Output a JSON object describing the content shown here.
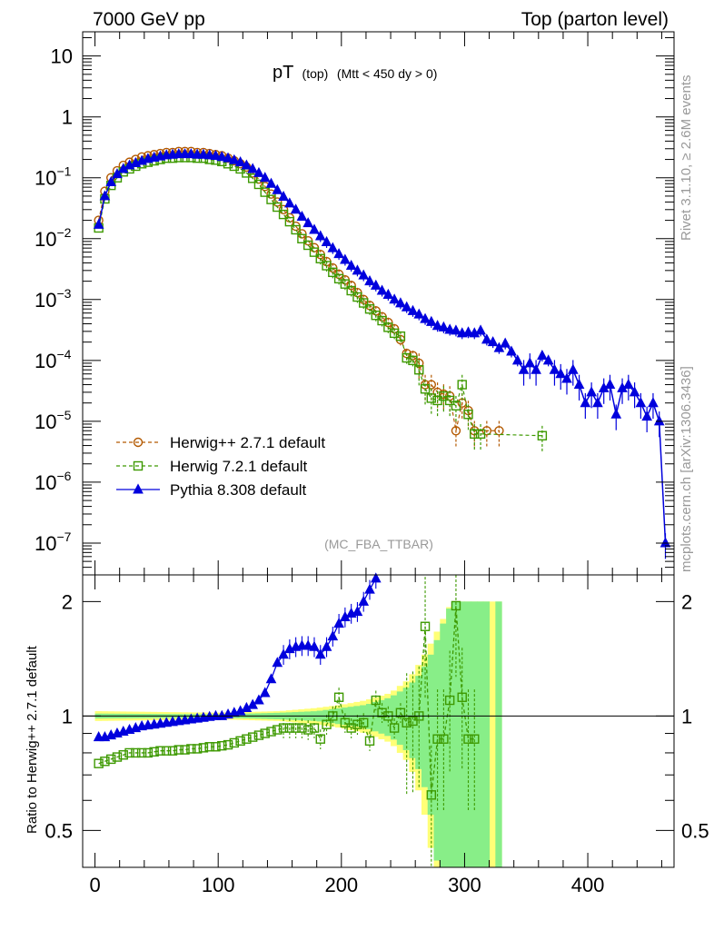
{
  "header": {
    "left": "7000 GeV pp",
    "right": "Top (parton level)"
  },
  "side_labels": {
    "rivet": "Rivet 3.1.10, ≥ 2.6M events",
    "mcplots": "mcplots.cern.ch [arXiv:1306.3436]"
  },
  "chart_data": [
    {
      "type": "line",
      "title_main": "pT",
      "title_sub1": "(top)",
      "title_sub2": "(Mtt < 450 dy > 0)",
      "analysis": "(MC_FBA_TTBAR)",
      "xlabel": "",
      "ylabel": "",
      "xlim": [
        -10,
        470
      ],
      "ylim_log": [
        3e-08,
        25
      ],
      "yscale": "log",
      "yticks": [
        {
          "v": 10,
          "label": "10"
        },
        {
          "v": 1,
          "label": "1"
        },
        {
          "v": 0.1,
          "label": "10",
          "exp": "−1"
        },
        {
          "v": 0.01,
          "label": "10",
          "exp": "−2"
        },
        {
          "v": 0.001,
          "label": "10",
          "exp": "−3"
        },
        {
          "v": 0.0001,
          "label": "10",
          "exp": "−4"
        },
        {
          "v": 1e-05,
          "label": "10",
          "exp": "−5"
        },
        {
          "v": 1e-06,
          "label": "10",
          "exp": "−6"
        },
        {
          "v": 1e-07,
          "label": "10",
          "exp": "−7"
        }
      ],
      "legend": [
        {
          "name": "Herwig++ 2.7.1 default",
          "color": "#b35900",
          "marker": "circle",
          "dash": true
        },
        {
          "name": "Herwig 7.2.1 default",
          "color": "#3d9900",
          "marker": "square",
          "dash": true
        },
        {
          "name": "Pythia 8.308 default",
          "color": "#0000dd",
          "marker": "triangle",
          "dash": false
        }
      ],
      "series": [
        {
          "name": "Herwig++ 2.7.1 default",
          "x": [
            3,
            8,
            13,
            18,
            23,
            28,
            33,
            38,
            43,
            48,
            53,
            58,
            63,
            68,
            73,
            78,
            83,
            88,
            93,
            98,
            103,
            108,
            113,
            118,
            123,
            128,
            133,
            138,
            143,
            148,
            153,
            158,
            163,
            168,
            173,
            178,
            183,
            188,
            193,
            198,
            203,
            208,
            213,
            218,
            223,
            228,
            233,
            238,
            243,
            248,
            253,
            258,
            263,
            268,
            273,
            278,
            283,
            288,
            293,
            298,
            303,
            308,
            318,
            328
          ],
          "y": [
            0.02,
            0.06,
            0.1,
            0.13,
            0.16,
            0.18,
            0.2,
            0.22,
            0.23,
            0.24,
            0.25,
            0.26,
            0.26,
            0.27,
            0.27,
            0.27,
            0.26,
            0.26,
            0.25,
            0.24,
            0.23,
            0.21,
            0.19,
            0.17,
            0.15,
            0.12,
            0.095,
            0.072,
            0.054,
            0.04,
            0.03,
            0.022,
            0.016,
            0.012,
            0.0092,
            0.0071,
            0.0055,
            0.0042,
            0.0033,
            0.0026,
            0.0021,
            0.0017,
            0.0013,
            0.001,
            0.0008,
            0.00065,
            0.00052,
            0.00042,
            0.00033,
            0.00022,
            0.00013,
            0.00012,
            9e-05,
            4e-05,
            4e-05,
            3e-05,
            2.8e-05,
            2.6e-05,
            7e-06,
            2e-05,
            1.5e-05,
            7e-06,
            7e-06,
            7e-06
          ]
        },
        {
          "name": "Herwig 7.2.1 default",
          "x": [
            3,
            8,
            13,
            18,
            23,
            28,
            33,
            38,
            43,
            48,
            53,
            58,
            63,
            68,
            73,
            78,
            83,
            88,
            93,
            98,
            103,
            108,
            113,
            118,
            123,
            128,
            133,
            138,
            143,
            148,
            153,
            158,
            163,
            168,
            173,
            178,
            183,
            188,
            193,
            198,
            203,
            208,
            213,
            218,
            223,
            228,
            233,
            238,
            243,
            248,
            253,
            258,
            263,
            268,
            273,
            278,
            283,
            288,
            293,
            298,
            303,
            308,
            313,
            363
          ],
          "y": [
            0.015,
            0.045,
            0.075,
            0.1,
            0.125,
            0.14,
            0.155,
            0.17,
            0.18,
            0.19,
            0.2,
            0.21,
            0.21,
            0.215,
            0.215,
            0.215,
            0.21,
            0.21,
            0.2,
            0.195,
            0.185,
            0.17,
            0.155,
            0.14,
            0.12,
            0.098,
            0.078,
            0.058,
            0.044,
            0.033,
            0.025,
            0.019,
            0.014,
            0.01,
            0.0078,
            0.006,
            0.0047,
            0.0036,
            0.0028,
            0.0022,
            0.0018,
            0.0014,
            0.0011,
            0.00088,
            0.0007,
            0.00055,
            0.00045,
            0.00035,
            0.00028,
            0.00025,
            0.00011,
            0.0001,
            7e-05,
            3.4e-05,
            2.4e-05,
            2.2e-05,
            2.6e-05,
            2.2e-05,
            1.8e-05,
            4e-05,
            1.3e-05,
            6.2e-06,
            6.2e-06,
            5.8e-06
          ]
        },
        {
          "name": "Pythia 8.308 default",
          "x": [
            3,
            8,
            13,
            18,
            23,
            28,
            33,
            38,
            43,
            48,
            53,
            58,
            63,
            68,
            73,
            78,
            83,
            88,
            93,
            98,
            103,
            108,
            113,
            118,
            123,
            128,
            133,
            138,
            143,
            148,
            153,
            158,
            163,
            168,
            173,
            178,
            183,
            188,
            193,
            198,
            203,
            208,
            213,
            218,
            223,
            228,
            233,
            238,
            243,
            248,
            253,
            258,
            263,
            268,
            273,
            278,
            283,
            288,
            293,
            298,
            303,
            308,
            313,
            318,
            323,
            328,
            333,
            338,
            343,
            348,
            353,
            358,
            363,
            368,
            373,
            378,
            383,
            388,
            393,
            398,
            403,
            408,
            413,
            418,
            423,
            428,
            433,
            438,
            443,
            448,
            453,
            458,
            463
          ],
          "y": [
            0.017,
            0.05,
            0.085,
            0.115,
            0.14,
            0.16,
            0.175,
            0.19,
            0.205,
            0.215,
            0.225,
            0.235,
            0.24,
            0.245,
            0.245,
            0.245,
            0.24,
            0.24,
            0.235,
            0.23,
            0.22,
            0.21,
            0.195,
            0.18,
            0.16,
            0.14,
            0.12,
            0.1,
            0.08,
            0.063,
            0.049,
            0.038,
            0.03,
            0.023,
            0.018,
            0.014,
            0.011,
            0.0088,
            0.007,
            0.0056,
            0.0045,
            0.0036,
            0.003,
            0.0025,
            0.002,
            0.0017,
            0.0014,
            0.0012,
            0.001,
            0.00087,
            0.00075,
            0.00065,
            0.00057,
            0.00048,
            0.00043,
            0.00037,
            0.00035,
            0.00032,
            0.00031,
            0.00028,
            0.00029,
            0.00028,
            0.00031,
            0.00022,
            0.0002,
            0.00016,
            0.00019,
            0.00014,
            0.0001,
            7e-05,
            9e-05,
            7e-05,
            0.00012,
            0.0001,
            7e-05,
            6e-05,
            5e-05,
            7e-05,
            4e-05,
            2e-05,
            3e-05,
            2e-05,
            3.5e-05,
            4e-05,
            1.3e-05,
            3.5e-05,
            4e-05,
            3e-05,
            2e-05,
            1.2e-05,
            2e-05,
            1e-05,
            1e-07
          ]
        }
      ]
    },
    {
      "type": "line",
      "ylabel": "Ratio to Herwig++ 2.7.1 default",
      "xlim": [
        -10,
        470
      ],
      "ylim_log": [
        0.4,
        2.35
      ],
      "yscale": "log",
      "yticks": [
        {
          "v": 0.5,
          "label": "0.5"
        },
        {
          "v": 1,
          "label": "1"
        },
        {
          "v": 2,
          "label": "2"
        }
      ],
      "xticks": [
        {
          "v": 0,
          "label": "0"
        },
        {
          "v": 100,
          "label": "100"
        },
        {
          "v": 200,
          "label": "200"
        },
        {
          "v": 300,
          "label": "300"
        },
        {
          "v": 400,
          "label": "400"
        }
      ],
      "bands": {
        "yellow": [
          [
            0,
            0.03
          ],
          [
            100,
            0.02
          ],
          [
            150,
            0.03
          ],
          [
            180,
            0.05
          ],
          [
            200,
            0.07
          ],
          [
            220,
            0.1
          ],
          [
            240,
            0.15
          ],
          [
            255,
            0.25
          ],
          [
            265,
            0.4
          ],
          [
            275,
            0.6
          ],
          [
            290,
            1.0
          ],
          [
            330,
            1.0
          ]
        ],
        "green": [
          [
            0,
            0.015
          ],
          [
            100,
            0.01
          ],
          [
            150,
            0.02
          ],
          [
            180,
            0.03
          ],
          [
            200,
            0.05
          ],
          [
            220,
            0.07
          ],
          [
            240,
            0.12
          ],
          [
            255,
            0.2
          ],
          [
            265,
            0.3
          ],
          [
            275,
            0.5
          ],
          [
            290,
            1.0
          ],
          [
            330,
            1.0
          ]
        ]
      },
      "series": [
        {
          "name": "Pythia 8.308 / Herwig++",
          "x": [
            3,
            8,
            13,
            18,
            23,
            28,
            33,
            38,
            43,
            48,
            53,
            58,
            63,
            68,
            73,
            78,
            83,
            88,
            93,
            98,
            103,
            108,
            113,
            118,
            123,
            128,
            133,
            138,
            143,
            148,
            153,
            158,
            163,
            168,
            173,
            178,
            183,
            188,
            193,
            198,
            203,
            208,
            213,
            218,
            223,
            228
          ],
          "y": [
            0.88,
            0.88,
            0.89,
            0.9,
            0.91,
            0.92,
            0.93,
            0.94,
            0.945,
            0.95,
            0.955,
            0.96,
            0.965,
            0.97,
            0.975,
            0.98,
            0.985,
            0.99,
            0.995,
            1.0,
            1.0,
            1.01,
            1.02,
            1.03,
            1.05,
            1.07,
            1.1,
            1.15,
            1.25,
            1.38,
            1.45,
            1.5,
            1.52,
            1.53,
            1.53,
            1.52,
            1.45,
            1.52,
            1.62,
            1.75,
            1.82,
            1.86,
            1.88,
            2.0,
            2.15,
            2.3
          ]
        },
        {
          "name": "Herwig 7.2.1 / Herwig++",
          "x": [
            3,
            8,
            13,
            18,
            23,
            28,
            33,
            38,
            43,
            48,
            53,
            58,
            63,
            68,
            73,
            78,
            83,
            88,
            93,
            98,
            103,
            108,
            113,
            118,
            123,
            128,
            133,
            138,
            143,
            148,
            153,
            158,
            163,
            168,
            173,
            178,
            183,
            188,
            193,
            198,
            203,
            208,
            213,
            218,
            223,
            228,
            233,
            238,
            243,
            248,
            253,
            258,
            263,
            268,
            273,
            278,
            283,
            288,
            293,
            298,
            303,
            308
          ],
          "y": [
            0.75,
            0.76,
            0.77,
            0.78,
            0.79,
            0.8,
            0.8,
            0.8,
            0.8,
            0.805,
            0.81,
            0.81,
            0.81,
            0.815,
            0.815,
            0.82,
            0.82,
            0.825,
            0.83,
            0.83,
            0.835,
            0.84,
            0.85,
            0.86,
            0.87,
            0.88,
            0.89,
            0.9,
            0.91,
            0.92,
            0.93,
            0.93,
            0.93,
            0.93,
            0.92,
            0.93,
            0.87,
            0.95,
            1.0,
            1.12,
            0.96,
            0.93,
            0.95,
            0.96,
            0.86,
            1.1,
            1.02,
            1.0,
            0.93,
            1.02,
            0.96,
            0.97,
            1.0,
            1.72,
            0.62,
            0.87,
            0.87,
            1.1,
            1.95,
            1.12,
            0.87,
            0.87
          ]
        }
      ]
    }
  ]
}
